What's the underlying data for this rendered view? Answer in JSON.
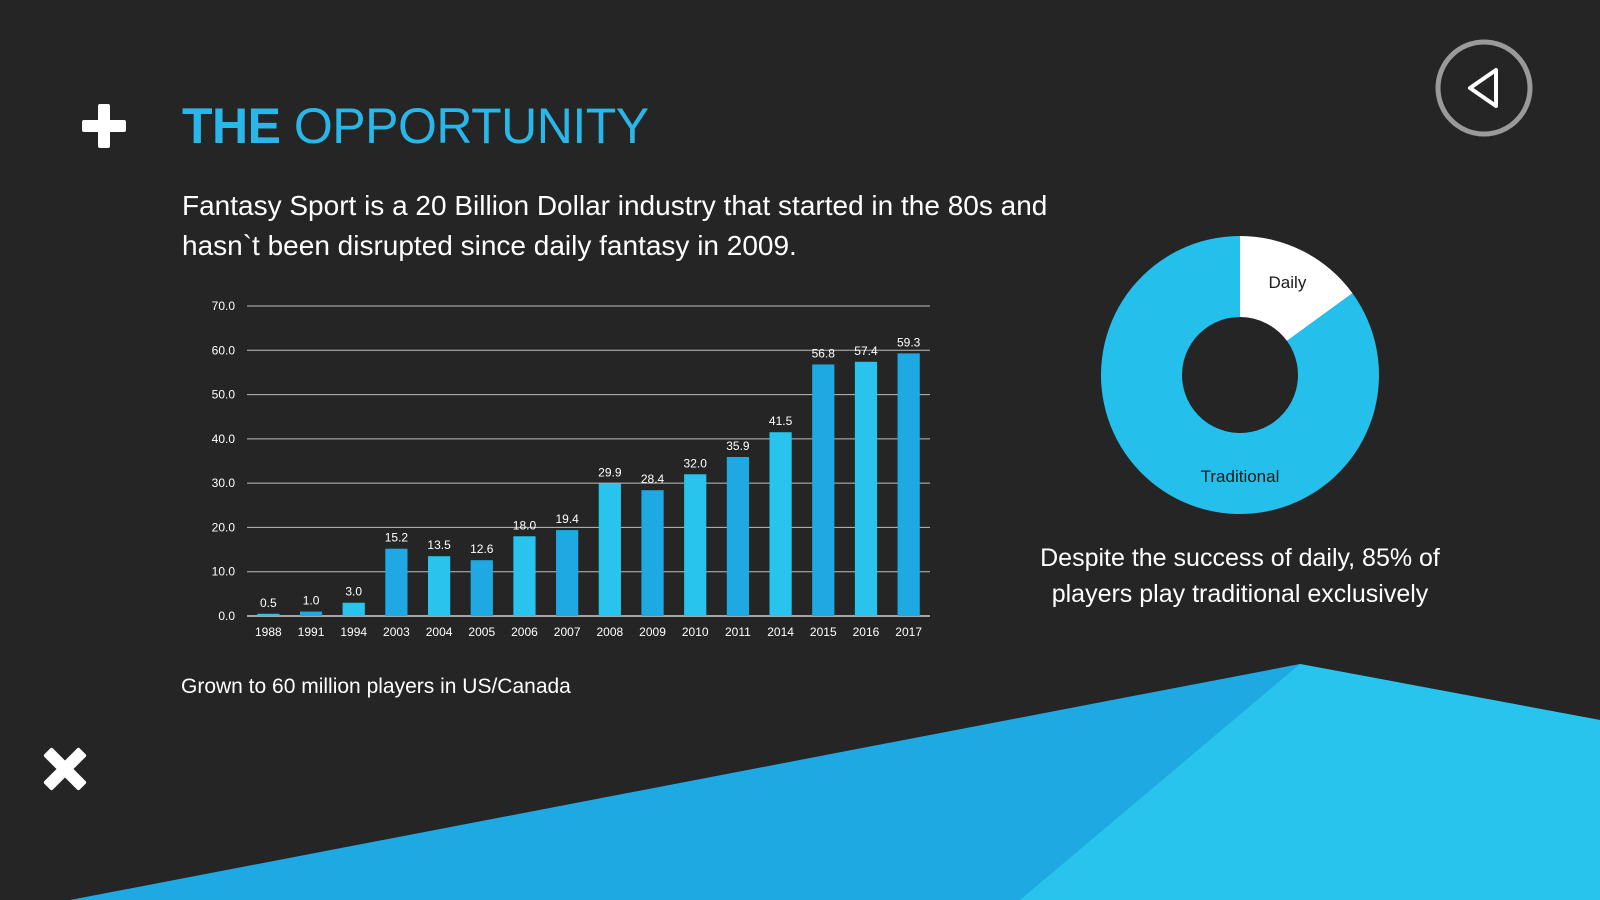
{
  "slide": {
    "title_strong": "THE",
    "title_rest": " OPPORTUNITY",
    "intro": "Fantasy Sport is a 20 Billion Dollar industry that started in the 80s and hasn`t been disrupted since daily fantasy in 2009.",
    "chart_caption": "Grown to 60 million players in US/Canada",
    "donut_caption": "Despite the success of daily, 85% of players play traditional exclusively"
  },
  "colors": {
    "background": "#252526",
    "accent": "#29b6e8",
    "bar_light": "#29c4ee",
    "bar_dark": "#1ea9e3",
    "donut_traditional": "#25bfec",
    "donut_daily": "#ffffff",
    "wedge_dark": "#1ea9e3",
    "wedge_light": "#29c4ee"
  },
  "icons": {
    "corner_top": "plus-icon",
    "corner_bottom": "close-icon",
    "nav": "back-triangle-icon"
  },
  "chart_data": [
    {
      "type": "bar",
      "title": "",
      "xlabel": "",
      "ylabel": "",
      "ylim": [
        0,
        70
      ],
      "y_ticks": [
        "0.0",
        "10.0",
        "20.0",
        "30.0",
        "40.0",
        "50.0",
        "60.0",
        "70.0"
      ],
      "grid": true,
      "categories": [
        "1988",
        "1991",
        "1994",
        "2003",
        "2004",
        "2005",
        "2006",
        "2007",
        "2008",
        "2009",
        "2010",
        "2011",
        "2014",
        "2015",
        "2016",
        "2017"
      ],
      "values": [
        0.5,
        1.0,
        3.0,
        15.2,
        13.5,
        12.6,
        18.0,
        19.4,
        29.9,
        28.4,
        32.0,
        35.9,
        41.5,
        56.8,
        57.4,
        59.3
      ],
      "value_labels": [
        "0.5",
        "1.0",
        "3.0",
        "15.2",
        "13.5",
        "12.6",
        "18.0",
        "19.4",
        "29.9",
        "28.4",
        "32.0",
        "35.9",
        "41.5",
        "56.8",
        "57.4",
        "59.3"
      ]
    },
    {
      "type": "pie",
      "style": "donut",
      "slices": [
        {
          "label": "Daily",
          "value": 15
        },
        {
          "label": "Traditional",
          "value": 85
        }
      ]
    }
  ]
}
